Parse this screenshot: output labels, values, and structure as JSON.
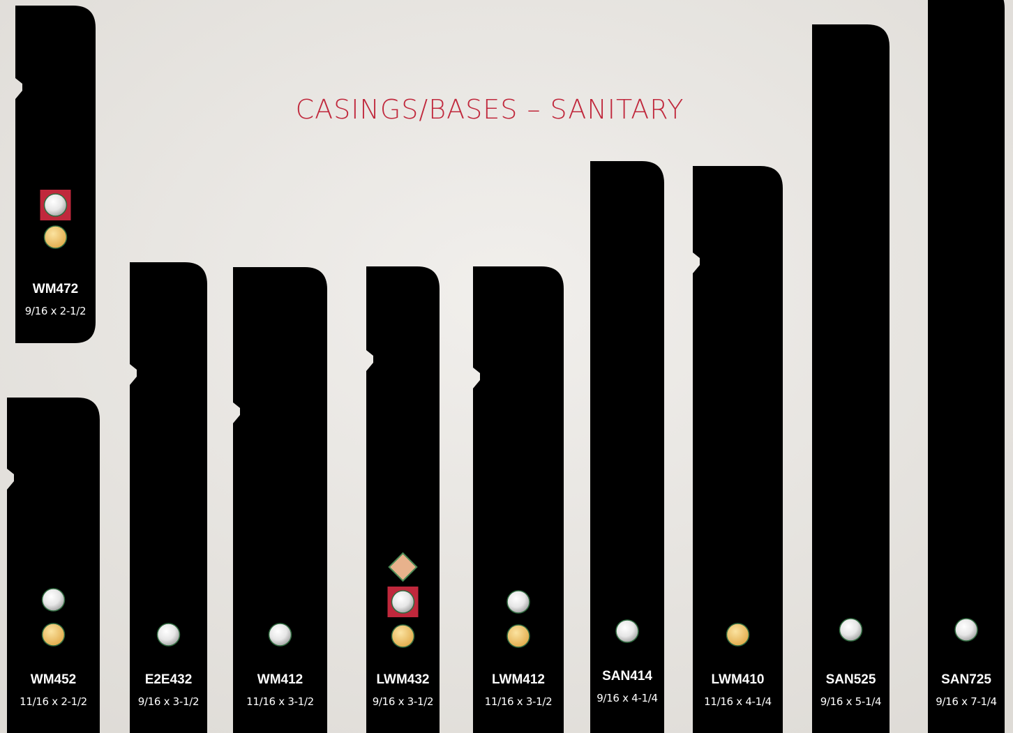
{
  "title": "CASINGS/BASES – SANITARY",
  "profiles": [
    {
      "code": "WM472",
      "size": "9/16 x 2-1/2"
    },
    {
      "code": "WM452",
      "size": "11/16 x 2-1/2"
    },
    {
      "code": "E2E432",
      "size": "9/16 x 3-1/2"
    },
    {
      "code": "WM412",
      "size": "11/16 x 3-1/2"
    },
    {
      "code": "LWM432",
      "size": "9/16 x 3-1/2"
    },
    {
      "code": "LWM412",
      "size": "11/16 x 3-1/2"
    },
    {
      "code": "SAN414",
      "size": "9/16 x 4-1/4"
    },
    {
      "code": "LWM410",
      "size": "11/16 x 4-1/4"
    },
    {
      "code": "SAN525",
      "size": "9/16 x 5-1/4"
    },
    {
      "code": "SAN725",
      "size": "9/16 x 7-1/4"
    }
  ]
}
